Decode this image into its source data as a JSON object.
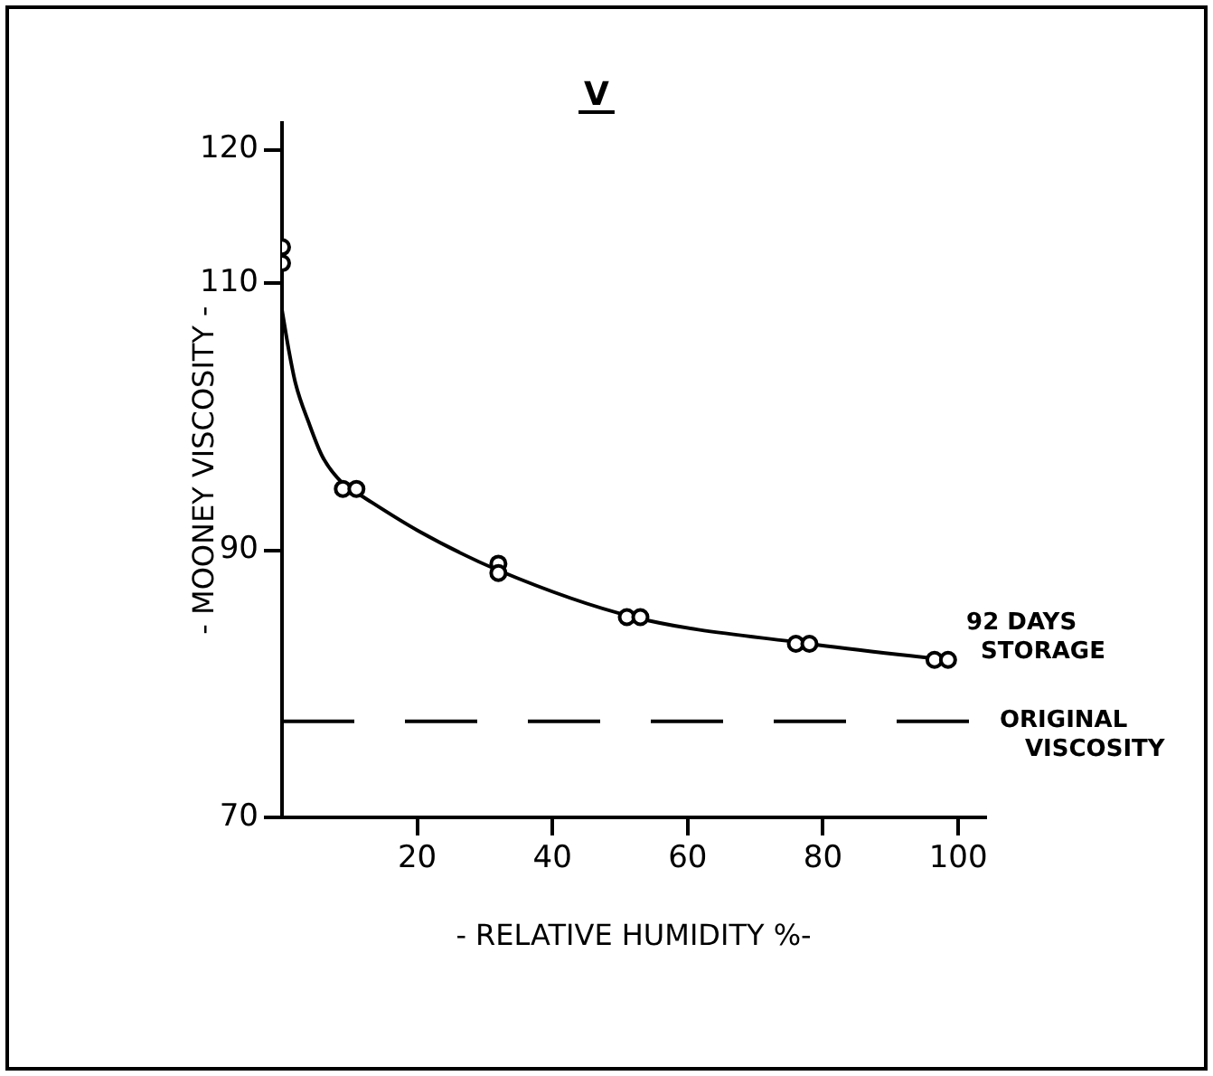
{
  "chart_data": {
    "type": "scatter",
    "title": "V",
    "xlabel": "- RELATIVE HUMIDITY %-",
    "ylabel": "- MOONEY VISCOSITY -",
    "xlim": [
      0,
      104
    ],
    "xticks": [
      20,
      40,
      60,
      80,
      100
    ],
    "ylim": [
      70,
      122
    ],
    "yticks": [
      70,
      90,
      110,
      120
    ],
    "series": [
      {
        "color": "#000000",
        "x": [
          0,
          0,
          9,
          11,
          32,
          32,
          51,
          53,
          76,
          78,
          96.5,
          98.5
        ],
        "values": [
          112.7,
          111.5,
          94.6,
          94.6,
          89,
          88.3,
          85,
          85,
          83,
          83,
          81.8,
          81.8
        ]
      },
      {
        "type": "line",
        "color": "#000000",
        "marker": "none",
        "x": [
          0,
          1,
          2,
          4,
          6,
          9,
          12,
          20,
          32,
          52,
          78,
          98
        ],
        "values": [
          108,
          105,
          102.5,
          99.5,
          97,
          95,
          94,
          91.5,
          88.5,
          85,
          83,
          81.8
        ]
      }
    ],
    "marker": "circle",
    "grid": false,
    "legend": false,
    "ref_lines": [
      {
        "axis": "y",
        "value": 77.2,
        "label": "ORIGINAL VISCOSITY",
        "color": "#000000",
        "line_style": "dashed"
      }
    ],
    "annotations": [
      {
        "text": "92 DAYS STORAGE",
        "x": 98,
        "y": 81.8
      }
    ]
  }
}
